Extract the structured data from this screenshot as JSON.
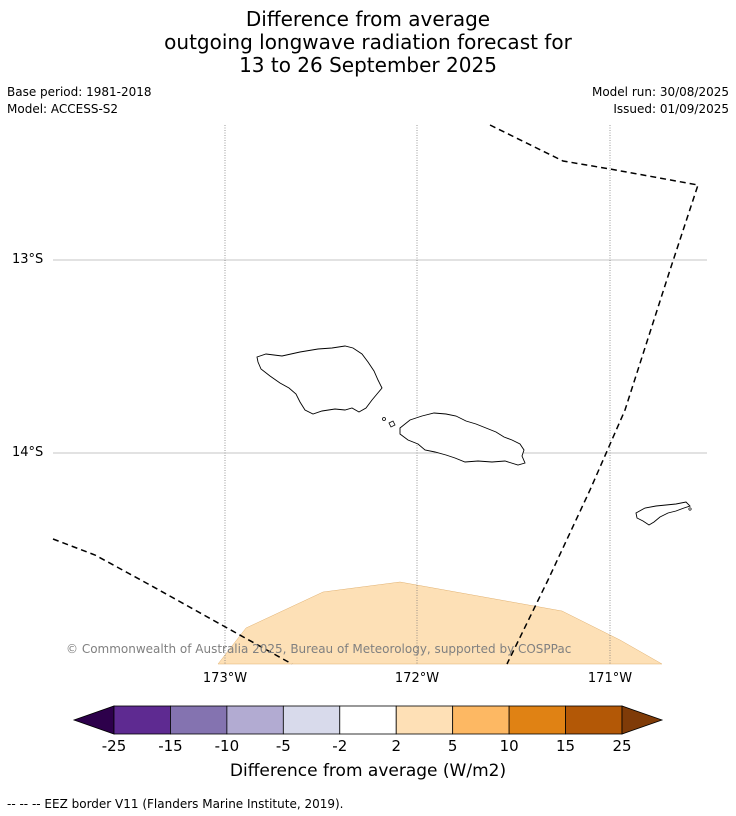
{
  "title": {
    "line1": "Difference from average",
    "line2": "outgoing longwave radiation forecast for",
    "line3": "13 to 26 September 2025"
  },
  "meta": {
    "base_period": "Base period: 1981-2018",
    "model": "Model: ACCESS-S2",
    "model_run": "Model run: 30/08/2025",
    "issued": "Issued: 01/09/2025"
  },
  "map": {
    "lat_labels": [
      "13°S",
      "14°S"
    ],
    "lon_labels": [
      "173°W",
      "172°W",
      "171°W"
    ],
    "copyright": "© Commonwealth of Australia 2025, Bureau of Meteorology, supported by COSPPac",
    "anomaly_fill_color": "#fde0b6"
  },
  "colorbar": {
    "ticks": [
      "-25",
      "-15",
      "-10",
      "-5",
      "-2",
      "2",
      "5",
      "10",
      "15",
      "25"
    ],
    "colors": [
      "#2d004b",
      "#5e2a91",
      "#8473b0",
      "#b2abd2",
      "#d8daeb",
      "#ffffff",
      "#fee0b6",
      "#fdb863",
      "#e08214",
      "#b35806",
      "#7f3b08"
    ],
    "label": "Difference from average (W/m2)"
  },
  "footer": {
    "legend": "--  --  -- EEZ border V11 (Flanders Marine Institute, 2019)."
  }
}
